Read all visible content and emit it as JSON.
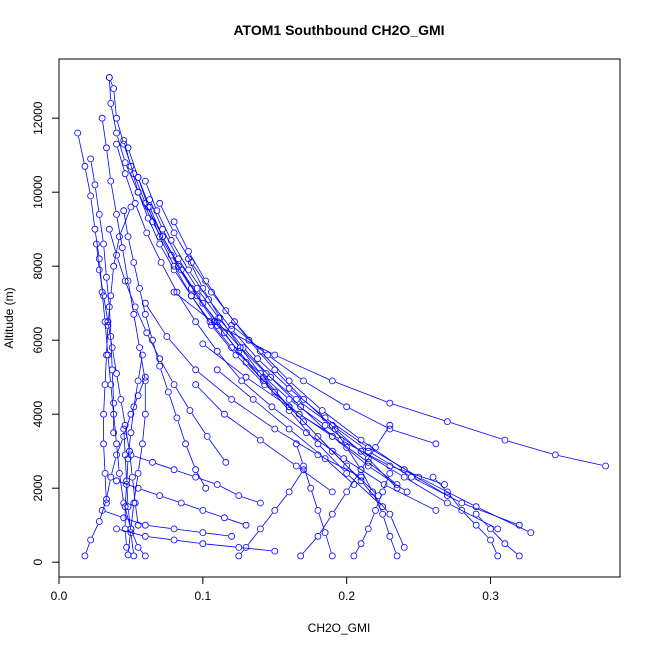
{
  "chart_data": {
    "type": "line",
    "title": "ATOM1 Southbound CH2O_GMI",
    "xlabel": "CH2O_GMI",
    "ylabel": "Altitude (m)",
    "xlim": [
      0,
      0.39
    ],
    "ylim": [
      -400,
      13600
    ],
    "x_ticks": [
      0.0,
      0.1,
      0.2,
      0.3
    ],
    "x_tick_labels": [
      "0.0",
      "0.1",
      "0.2",
      "0.3"
    ],
    "y_ticks": [
      0,
      2000,
      4000,
      6000,
      8000,
      10000,
      12000
    ],
    "y_tick_labels": [
      "0",
      "2000",
      "4000",
      "6000",
      "8000",
      "10000",
      "12000"
    ],
    "grid": false,
    "legend": "none",
    "marker": "open-circle",
    "color": "#0000ff",
    "series": [
      {
        "x": [
          0.035,
          0.038,
          0.04,
          0.045,
          0.052,
          0.06,
          0.072,
          0.085,
          0.1,
          0.115,
          0.13,
          0.15,
          0.17,
          0.19,
          0.21,
          0.23,
          0.24
        ],
        "y": [
          13100,
          12800,
          12000,
          11300,
          10500,
          9700,
          8800,
          7900,
          7000,
          6200,
          5400,
          4600,
          3800,
          3000,
          2200,
          1300,
          400
        ]
      },
      {
        "x": [
          0.035,
          0.036,
          0.04,
          0.046,
          0.055,
          0.065,
          0.078,
          0.092,
          0.108,
          0.125,
          0.142,
          0.16,
          0.18,
          0.2,
          0.225
        ],
        "y": [
          13100,
          12400,
          11600,
          10800,
          10000,
          9200,
          8300,
          7400,
          6500,
          5700,
          4900,
          4100,
          3200,
          2400,
          1500
        ]
      },
      {
        "x": [
          0.013,
          0.018,
          0.022,
          0.025,
          0.028,
          0.03,
          0.032,
          0.034,
          0.036,
          0.038,
          0.04,
          0.042,
          0.045,
          0.05,
          0.055,
          0.06
        ],
        "y": [
          11600,
          10700,
          9900,
          9000,
          8200,
          7300,
          6500,
          5600,
          4800,
          4000,
          3200,
          2400,
          1600,
          900,
          400,
          170
        ]
      },
      {
        "x": [
          0.022,
          0.025,
          0.028,
          0.031,
          0.033,
          0.035,
          0.036,
          0.037,
          0.038,
          0.038
        ],
        "y": [
          10900,
          10200,
          9400,
          8600,
          7700,
          6900,
          6100,
          5200,
          4300,
          3500
        ]
      },
      {
        "x": [
          0.03,
          0.033,
          0.036,
          0.04,
          0.044,
          0.048,
          0.052,
          0.056,
          0.06,
          0.06,
          0.058,
          0.055,
          0.052,
          0.05,
          0.048
        ],
        "y": [
          12000,
          11200,
          10300,
          9400,
          8500,
          7600,
          6700,
          5800,
          4900,
          4000,
          3200,
          2400,
          1600,
          900,
          200
        ]
      },
      {
        "x": [
          0.045,
          0.05,
          0.055,
          0.062,
          0.07,
          0.08,
          0.092,
          0.105,
          0.12,
          0.14,
          0.16,
          0.185,
          0.21,
          0.24,
          0.27,
          0.305
        ],
        "y": [
          11400,
          10700,
          10000,
          9300,
          8600,
          7900,
          7200,
          6500,
          5800,
          5100,
          4400,
          3700,
          3000,
          2300,
          1600,
          900
        ]
      },
      {
        "x": [
          0.048,
          0.055,
          0.063,
          0.072,
          0.083,
          0.096,
          0.11,
          0.126,
          0.144,
          0.165,
          0.19,
          0.215,
          0.245,
          0.28,
          0.32
        ],
        "y": [
          11200,
          10400,
          9600,
          8800,
          8000,
          7200,
          6500,
          5800,
          5100,
          4400,
          3700,
          3000,
          2300,
          1600,
          1000
        ]
      },
      {
        "x": [
          0.04,
          0.046,
          0.053,
          0.061,
          0.071,
          0.082,
          0.095,
          0.11,
          0.127,
          0.148,
          0.172,
          0.198,
          0.226,
          0.262
        ],
        "y": [
          11300,
          10500,
          9700,
          8900,
          8100,
          7300,
          6500,
          5700,
          4900,
          4200,
          3500,
          2800,
          2100,
          1400
        ]
      },
      {
        "x": [
          0.055,
          0.062,
          0.07,
          0.08,
          0.092,
          0.106,
          0.123,
          0.143,
          0.167,
          0.196,
          0.23,
          0.268
        ],
        "y": [
          10400,
          9600,
          8800,
          8000,
          7200,
          6400,
          5600,
          4800,
          4000,
          3300,
          2600,
          2100
        ]
      },
      {
        "x": [
          0.06,
          0.068,
          0.078,
          0.09,
          0.104,
          0.12,
          0.138,
          0.16,
          0.185,
          0.215,
          0.25,
          0.29,
          0.328
        ],
        "y": [
          10300,
          9500,
          8700,
          7900,
          7100,
          6300,
          5500,
          4700,
          3900,
          3100,
          2300,
          1500,
          800
        ]
      },
      {
        "x": [
          0.07,
          0.08,
          0.092,
          0.106,
          0.122,
          0.14,
          0.16,
          0.183,
          0.21,
          0.24,
          0.27
        ],
        "y": [
          9700,
          8900,
          8100,
          7300,
          6500,
          5700,
          4900,
          4100,
          3300,
          2500,
          1800
        ]
      },
      {
        "x": [
          0.063,
          0.072,
          0.083,
          0.096,
          0.111,
          0.128,
          0.147,
          0.168,
          0.19,
          0.215,
          0.242
        ],
        "y": [
          9800,
          9000,
          8200,
          7400,
          6600,
          5800,
          5000,
          4200,
          3400,
          2600,
          1900
        ]
      },
      {
        "x": [
          0.08,
          0.09,
          0.102,
          0.116,
          0.132,
          0.15,
          0.17,
          0.192,
          0.215,
          0.235
        ],
        "y": [
          9200,
          8400,
          7600,
          6800,
          6000,
          5200,
          4400,
          3600,
          2800,
          2000
        ]
      },
      {
        "x": [
          0.09,
          0.1,
          0.112,
          0.126,
          0.142,
          0.16,
          0.18,
          0.2,
          0.222
        ],
        "y": [
          8200,
          7400,
          6600,
          5800,
          5000,
          4200,
          3400,
          2600,
          1800
        ]
      },
      {
        "x": [
          0.12,
          0.145,
          0.17,
          0.2,
          0.23,
          0.262
        ],
        "y": [
          6400,
          5600,
          4900,
          4200,
          3600,
          3200
        ]
      },
      {
        "x": [
          0.08,
          0.11,
          0.15,
          0.19,
          0.23,
          0.27,
          0.31,
          0.345,
          0.38
        ],
        "y": [
          7300,
          6400,
          5600,
          4900,
          4300,
          3800,
          3300,
          2900,
          2600
        ]
      },
      {
        "x": [
          0.1,
          0.13,
          0.16,
          0.19,
          0.215,
          0.235
        ],
        "y": [
          5900,
          5000,
          4200,
          3400,
          2700,
          2100
        ]
      },
      {
        "x": [
          0.11,
          0.135,
          0.16,
          0.185,
          0.205
        ],
        "y": [
          5200,
          4400,
          3600,
          2800,
          2100
        ]
      },
      {
        "x": [
          0.095,
          0.115,
          0.14,
          0.165,
          0.19
        ],
        "y": [
          4800,
          4000,
          3300,
          2600,
          1900
        ]
      },
      {
        "x": [
          0.06,
          0.075,
          0.095,
          0.12,
          0.15,
          0.18,
          0.21
        ],
        "y": [
          7000,
          6100,
          5200,
          4400,
          3600,
          2900,
          2300
        ]
      },
      {
        "x": [
          0.045,
          0.048,
          0.052,
          0.056,
          0.06,
          0.065,
          0.07,
          0.076,
          0.082,
          0.088,
          0.095,
          0.102
        ],
        "y": [
          9500,
          8800,
          8100,
          7400,
          6700,
          6000,
          5300,
          4600,
          3900,
          3200,
          2500,
          2000
        ]
      },
      {
        "x": [
          0.035,
          0.04,
          0.046,
          0.053,
          0.061,
          0.07,
          0.08,
          0.091,
          0.103,
          0.116
        ],
        "y": [
          9000,
          8300,
          7600,
          6900,
          6200,
          5500,
          4800,
          4100,
          3400,
          2700
        ]
      },
      {
        "x": [
          0.05,
          0.042,
          0.038,
          0.036,
          0.034,
          0.033,
          0.032,
          0.031,
          0.031,
          0.032,
          0.033
        ],
        "y": [
          9600,
          8800,
          8000,
          7200,
          6400,
          5600,
          4800,
          4000,
          3200,
          2400,
          1600
        ]
      },
      {
        "x": [
          0.026,
          0.028,
          0.031,
          0.034,
          0.037,
          0.04,
          0.043,
          0.046,
          0.049,
          0.051,
          0.053,
          0.055
        ],
        "y": [
          8600,
          7900,
          7200,
          6500,
          5800,
          5100,
          4400,
          3700,
          3000,
          2300,
          1600,
          1000
        ]
      },
      {
        "x": [
          0.058,
          0.055,
          0.052,
          0.05,
          0.048,
          0.047,
          0.046,
          0.046,
          0.047
        ],
        "y": [
          5600,
          4900,
          4200,
          3500,
          2800,
          2100,
          1500,
          900,
          400
        ]
      },
      {
        "x": [
          0.05,
          0.065,
          0.08,
          0.095,
          0.11,
          0.125,
          0.14
        ],
        "y": [
          2900,
          2700,
          2500,
          2300,
          2100,
          1800,
          1600
        ]
      },
      {
        "x": [
          0.04,
          0.055,
          0.07,
          0.085,
          0.1,
          0.115,
          0.13
        ],
        "y": [
          2200,
          2000,
          1800,
          1600,
          1400,
          1200,
          1000
        ]
      },
      {
        "x": [
          0.03,
          0.045,
          0.06,
          0.08,
          0.1,
          0.12
        ],
        "y": [
          1400,
          1200,
          1000,
          900,
          800,
          700
        ]
      },
      {
        "x": [
          0.04,
          0.06,
          0.08,
          0.1,
          0.125,
          0.15
        ],
        "y": [
          900,
          700,
          600,
          500,
          400,
          300
        ]
      },
      {
        "x": [
          0.125,
          0.13,
          0.14,
          0.15,
          0.16,
          0.17
        ],
        "y": [
          170,
          400,
          900,
          1400,
          1900,
          2500
        ]
      },
      {
        "x": [
          0.168,
          0.18,
          0.19,
          0.2,
          0.21,
          0.22,
          0.23
        ],
        "y": [
          170,
          700,
          1300,
          1900,
          2500,
          3100,
          3700
        ]
      },
      {
        "x": [
          0.305,
          0.3,
          0.29,
          0.28,
          0.27,
          0.26
        ],
        "y": [
          170,
          600,
          1000,
          1400,
          1900,
          2300
        ]
      },
      {
        "x": [
          0.32,
          0.31,
          0.3,
          0.29
        ],
        "y": [
          170,
          500,
          900,
          1300
        ]
      },
      {
        "x": [
          0.018,
          0.022,
          0.028,
          0.033,
          0.036,
          0.04,
          0.045,
          0.05,
          0.055,
          0.06
        ],
        "y": [
          170,
          600,
          1100,
          1700,
          2300,
          2900,
          3400,
          4000,
          4500,
          5000
        ]
      },
      {
        "x": [
          0.19,
          0.185,
          0.18,
          0.175,
          0.17,
          0.165
        ],
        "y": [
          170,
          800,
          1400,
          2000,
          2600,
          3200
        ]
      },
      {
        "x": [
          0.235,
          0.23,
          0.225,
          0.218,
          0.21,
          0.2,
          0.19
        ],
        "y": [
          170,
          700,
          1300,
          1900,
          2500,
          3100,
          3700
        ]
      },
      {
        "x": [
          0.052,
          0.05,
          0.048,
          0.047,
          0.046,
          0.045
        ],
        "y": [
          170,
          800,
          1500,
          2200,
          2900,
          3600
        ]
      },
      {
        "x": [
          0.205,
          0.21,
          0.215,
          0.22,
          0.225,
          0.23
        ],
        "y": [
          170,
          500,
          900,
          1400,
          1900,
          2400
        ]
      }
    ]
  }
}
